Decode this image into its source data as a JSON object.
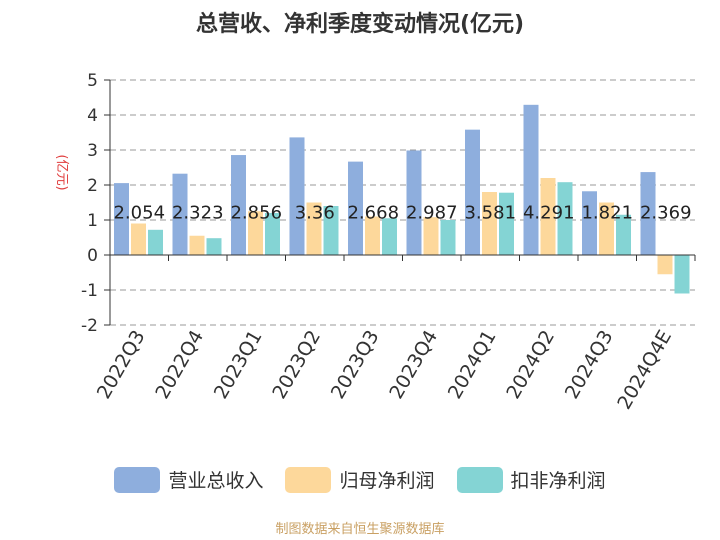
{
  "title": "总营收、净利季度变动情况(亿元)",
  "footer": "制图数据来自恒生聚源数据库",
  "colors": {
    "revenue": "#8eaedd",
    "net_profit": "#fdd89b",
    "deducted_profit": "#84d4d4",
    "axis": "#333333",
    "grid": "#999999",
    "ylabel": "#e03c3c"
  },
  "chart_data": {
    "type": "bar",
    "ylabel": "(亿元)",
    "ylim": [
      -2,
      5
    ],
    "yticks": [
      -2,
      -1,
      0,
      1,
      2,
      3,
      4,
      5
    ],
    "grid": true,
    "legend_position": "bottom",
    "categories": [
      "2022Q3",
      "2022Q4",
      "2023Q1",
      "2023Q2",
      "2023Q3",
      "2023Q4",
      "2024Q1",
      "2024Q2",
      "2024Q3",
      "2024Q4E"
    ],
    "series": [
      {
        "name": "营业总收入",
        "values": [
          2.054,
          2.323,
          2.856,
          3.36,
          2.668,
          2.987,
          3.581,
          4.291,
          1.821,
          2.369
        ]
      },
      {
        "name": "归母净利润",
        "values": [
          0.9,
          0.55,
          1.25,
          1.5,
          1.1,
          1.08,
          1.8,
          2.2,
          1.5,
          -0.55
        ]
      },
      {
        "name": "扣非净利润",
        "values": [
          0.72,
          0.48,
          1.2,
          1.4,
          1.05,
          1.0,
          1.78,
          2.08,
          1.15,
          -1.1
        ]
      }
    ],
    "data_labels": [
      "2.054",
      "2.323",
      "2.856",
      "3.36",
      "2.668",
      "2.987",
      "3.581",
      "4.291",
      "1.821",
      "2.369"
    ]
  }
}
